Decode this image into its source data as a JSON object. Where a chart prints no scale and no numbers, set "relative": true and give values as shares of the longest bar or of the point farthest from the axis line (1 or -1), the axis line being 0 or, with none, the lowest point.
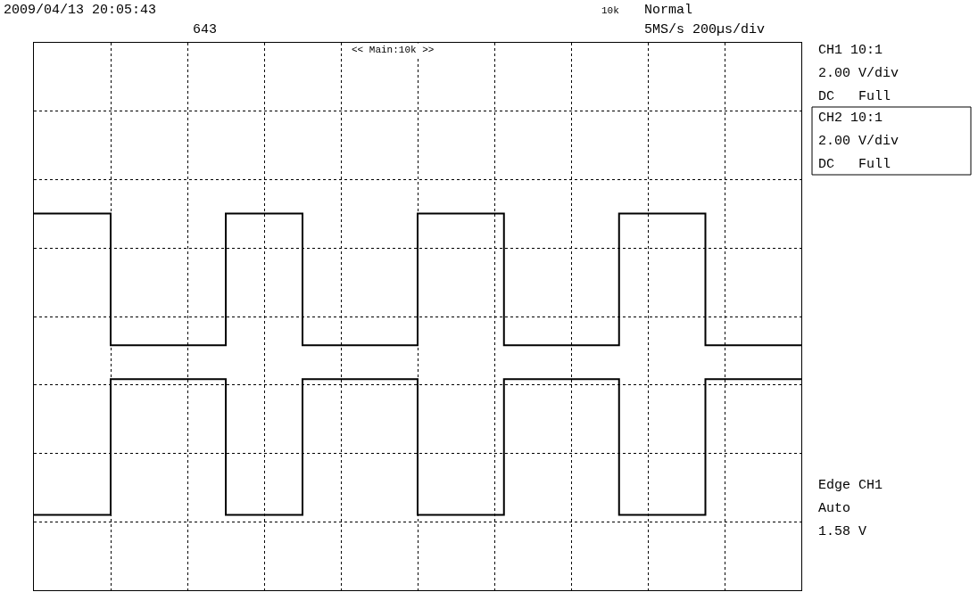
{
  "chart_data": {
    "type": "step",
    "relative": true,
    "grid": true,
    "annotations": [
      "2009/04/13 20:05:43",
      "643",
      "10k",
      "Normal",
      "5MS/s 200µs/div",
      "<< Main:10k >>",
      "CH1 10:1",
      "2.00 V/div",
      "DC   Full",
      "CH2 10:1",
      "2.00 V/div",
      "DC   Full",
      "Edge CH1",
      "Auto",
      "1.58 V"
    ],
    "categories": [
      null,
      null,
      null,
      null,
      null,
      null,
      null,
      null,
      null,
      null,
      null,
      null,
      null,
      null,
      null,
      null,
      null,
      null,
      null,
      null,
      null,
      null,
      null,
      null,
      null,
      null,
      null,
      null,
      null,
      null,
      null,
      null,
      null,
      null,
      null,
      null,
      null,
      null,
      null,
      null,
      null,
      null,
      null,
      null,
      null,
      null,
      null,
      null,
      null,
      null,
      null,
      null,
      null,
      null,
      null,
      null,
      null,
      null,
      null,
      null,
      null,
      null,
      null,
      null,
      null,
      null,
      null,
      null,
      null,
      null,
      null,
      null,
      null,
      null,
      null,
      null,
      null,
      null,
      null,
      null,
      null
    ],
    "series": [
      {
        "color": "#000000",
        "values": [
          1,
          1,
          1,
          1,
          1,
          1,
          1,
          1,
          0.65,
          0.65,
          0.65,
          0.65,
          0.65,
          0.65,
          0.65,
          0.65,
          0.65,
          0.65,
          0.65,
          0.65,
          1,
          1,
          1,
          1,
          1,
          1,
          1,
          1,
          0.65,
          0.65,
          0.65,
          0.65,
          0.65,
          0.65,
          0.65,
          0.65,
          0.65,
          0.65,
          0.65,
          0.65,
          1,
          1,
          1,
          1,
          1,
          1,
          1,
          1,
          1,
          0.65,
          0.65,
          0.65,
          0.65,
          0.65,
          0.65,
          0.65,
          0.65,
          0.65,
          0.65,
          0.65,
          0.65,
          1,
          1,
          1,
          1,
          1,
          1,
          1,
          1,
          1,
          0.65,
          0.65,
          0.65,
          0.65,
          0.65,
          0.65,
          0.65,
          0.65,
          0.65,
          0.65,
          0.65
        ]
      },
      {
        "color": "#000000",
        "values": [
          0.2,
          0.2,
          0.2,
          0.2,
          0.2,
          0.2,
          0.2,
          0.2,
          0.56,
          0.56,
          0.56,
          0.56,
          0.56,
          0.56,
          0.56,
          0.56,
          0.56,
          0.56,
          0.56,
          0.56,
          0.2,
          0.2,
          0.2,
          0.2,
          0.2,
          0.2,
          0.2,
          0.2,
          0.56,
          0.56,
          0.56,
          0.56,
          0.56,
          0.56,
          0.56,
          0.56,
          0.56,
          0.56,
          0.56,
          0.56,
          0.2,
          0.2,
          0.2,
          0.2,
          0.2,
          0.2,
          0.2,
          0.2,
          0.2,
          0.56,
          0.56,
          0.56,
          0.56,
          0.56,
          0.56,
          0.56,
          0.56,
          0.56,
          0.56,
          0.56,
          0.56,
          0.2,
          0.2,
          0.2,
          0.2,
          0.2,
          0.2,
          0.2,
          0.2,
          0.2,
          0.56,
          0.56,
          0.56,
          0.56,
          0.56,
          0.56,
          0.56,
          0.56,
          0.56,
          0.56,
          0.56
        ]
      }
    ]
  }
}
